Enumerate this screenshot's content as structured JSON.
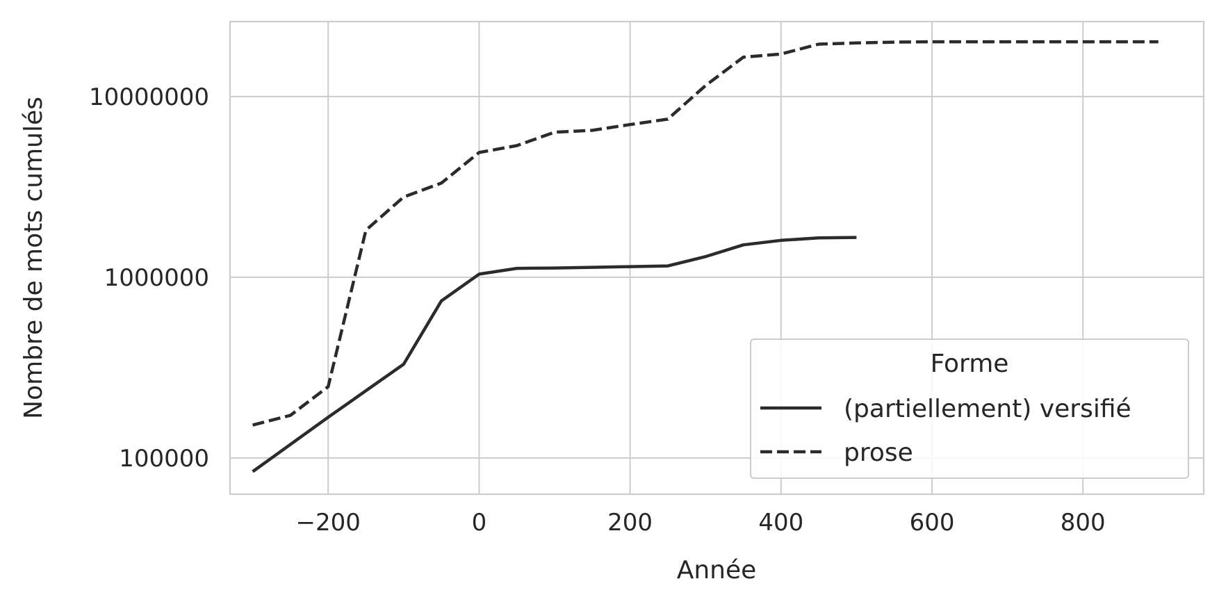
{
  "chart_data": {
    "type": "line",
    "xlabel": "Année",
    "ylabel": "Nombre de mots cumulés",
    "xlim": [
      -330,
      960
    ],
    "ylim": [
      63000,
      26000000
    ],
    "yscale": "log",
    "grid": true,
    "x_ticks": [
      -200,
      0,
      200,
      400,
      600,
      800
    ],
    "x_tick_labels": [
      "−200",
      "0",
      "200",
      "400",
      "600",
      "800"
    ],
    "y_ticks": [
      100000,
      1000000,
      10000000
    ],
    "y_tick_labels": [
      "100000",
      "1000000",
      "10000000"
    ],
    "legend": {
      "title": "Forme",
      "position": "lower-right"
    },
    "series": [
      {
        "name": "(partiellement) versifié",
        "style": "solid",
        "color": "#2b2b2b",
        "x": [
          -300,
          -200,
          -100,
          -50,
          0,
          50,
          100,
          150,
          200,
          250,
          300,
          350,
          400,
          450,
          500
        ],
        "y": [
          84000,
          168000,
          330000,
          740000,
          1040000,
          1120000,
          1125000,
          1135000,
          1145000,
          1155000,
          1300000,
          1510000,
          1600000,
          1650000,
          1660000
        ]
      },
      {
        "name": "prose",
        "style": "dashed",
        "color": "#2b2b2b",
        "x": [
          -300,
          -250,
          -200,
          -150,
          -100,
          -50,
          0,
          50,
          100,
          150,
          200,
          250,
          300,
          350,
          400,
          450,
          500,
          550,
          600,
          650,
          700,
          750,
          800,
          850,
          900
        ],
        "y": [
          152000,
          172000,
          248000,
          1820000,
          2780000,
          3320000,
          4900000,
          5350000,
          6350000,
          6500000,
          7000000,
          7500000,
          11500000,
          16500000,
          17200000,
          19500000,
          19800000,
          20000000,
          20100000,
          20100000,
          20100000,
          20100000,
          20100000,
          20100000,
          20100000
        ]
      }
    ]
  }
}
